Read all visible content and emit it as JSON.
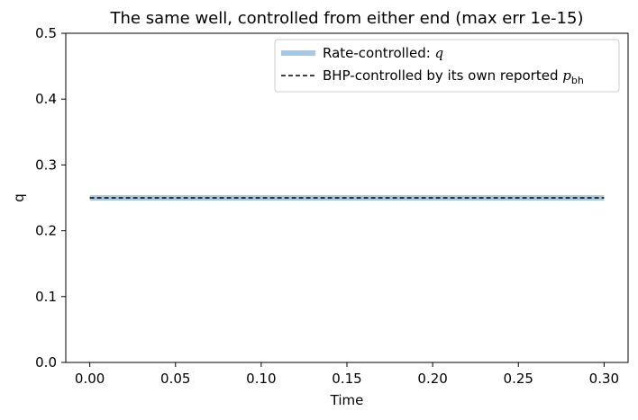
{
  "chart_data": {
    "type": "line",
    "title": "The same well, controlled from either end (max err 1e-15)",
    "xlabel": "Time",
    "ylabel": "q",
    "xlim": [
      -0.014,
      0.314
    ],
    "ylim": [
      0.0,
      0.5
    ],
    "xticks": [
      "0.00",
      "0.05",
      "0.10",
      "0.15",
      "0.20",
      "0.25",
      "0.30"
    ],
    "xtick_values": [
      0.0,
      0.05,
      0.1,
      0.15,
      0.2,
      0.25,
      0.3
    ],
    "yticks": [
      "0.0",
      "0.1",
      "0.2",
      "0.3",
      "0.4",
      "0.5"
    ],
    "ytick_values": [
      0.0,
      0.1,
      0.2,
      0.3,
      0.4,
      0.5
    ],
    "grid": false,
    "legend_position": "top-right",
    "series": [
      {
        "name": "Rate-controlled: q",
        "legend_prefix": "Rate-controlled: ",
        "legend_var": "q",
        "color": "#a6c8e2",
        "style": "solid-thick",
        "x": [
          0.0,
          0.3
        ],
        "y": [
          0.25,
          0.25
        ]
      },
      {
        "name": "BHP-controlled by its own reported p_bh",
        "legend_prefix": "BHP-controlled by its own reported ",
        "legend_var": "p",
        "legend_sub": "bh",
        "color": "#000000",
        "style": "dashed",
        "x": [
          0.0,
          0.3
        ],
        "y": [
          0.25,
          0.25
        ]
      }
    ]
  }
}
